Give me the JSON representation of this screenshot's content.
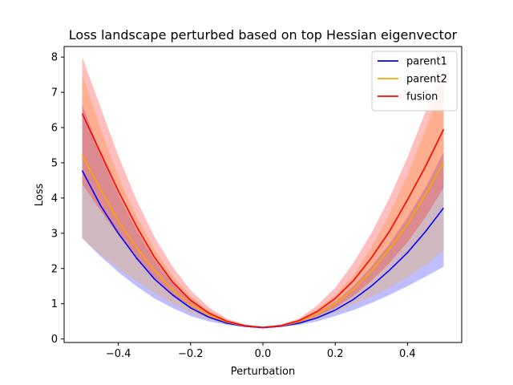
{
  "chart_data": {
    "type": "line",
    "title": "Loss landscape perturbed based on top Hessian eigenvector",
    "xlabel": "Perturbation",
    "ylabel": "Loss",
    "xlim": [
      -0.55,
      0.55
    ],
    "ylim": [
      -0.1,
      8.3
    ],
    "xticks": [
      -0.4,
      -0.2,
      0.0,
      0.2,
      0.4
    ],
    "xtick_labels": [
      "−0.4",
      "−0.2",
      "0.0",
      "0.2",
      "0.4"
    ],
    "yticks": [
      0,
      1,
      2,
      3,
      4,
      5,
      6,
      7,
      8
    ],
    "ytick_labels": [
      "0",
      "1",
      "2",
      "3",
      "4",
      "5",
      "6",
      "7",
      "8"
    ],
    "grid": false,
    "legend_position": "top-right",
    "x": [
      -0.5,
      -0.45,
      -0.4,
      -0.35,
      -0.3,
      -0.25,
      -0.2,
      -0.15,
      -0.1,
      -0.05,
      0.0,
      0.05,
      0.1,
      0.15,
      0.2,
      0.25,
      0.3,
      0.35,
      0.4,
      0.45,
      0.5
    ],
    "series": [
      {
        "name": "parent1",
        "color": "#0000ff",
        "values": [
          4.78,
          3.8,
          3.0,
          2.3,
          1.7,
          1.25,
          0.88,
          0.62,
          0.45,
          0.36,
          0.32,
          0.36,
          0.45,
          0.6,
          0.82,
          1.12,
          1.5,
          1.95,
          2.45,
          3.05,
          3.72
        ],
        "lower": [
          2.86,
          2.35,
          1.9,
          1.5,
          1.15,
          0.88,
          0.65,
          0.5,
          0.4,
          0.34,
          0.31,
          0.34,
          0.4,
          0.5,
          0.65,
          0.82,
          1.02,
          1.25,
          1.5,
          1.77,
          2.05
        ],
        "upper": [
          6.65,
          5.3,
          4.1,
          3.1,
          2.25,
          1.6,
          1.1,
          0.75,
          0.51,
          0.38,
          0.33,
          0.38,
          0.52,
          0.75,
          1.05,
          1.5,
          2.05,
          2.7,
          3.45,
          4.3,
          5.3
        ]
      },
      {
        "name": "parent2",
        "color": "#ffa500",
        "values": [
          5.22,
          4.25,
          3.35,
          2.6,
          1.95,
          1.4,
          0.98,
          0.68,
          0.48,
          0.37,
          0.33,
          0.37,
          0.49,
          0.7,
          1.0,
          1.4,
          1.92,
          2.55,
          3.25,
          4.1,
          5.0
        ],
        "lower": [
          2.86,
          2.4,
          2.0,
          1.65,
          1.3,
          1.0,
          0.74,
          0.56,
          0.43,
          0.35,
          0.32,
          0.35,
          0.43,
          0.56,
          0.75,
          0.98,
          1.2,
          1.45,
          1.75,
          2.1,
          2.5
        ],
        "upper": [
          7.5,
          6.0,
          4.6,
          3.5,
          2.55,
          1.8,
          1.23,
          0.82,
          0.55,
          0.4,
          0.34,
          0.4,
          0.56,
          0.85,
          1.25,
          1.8,
          2.6,
          3.55,
          4.65,
          5.95,
          7.3
        ]
      },
      {
        "name": "fusion",
        "color": "#ff0000",
        "values": [
          6.4,
          5.3,
          4.2,
          3.2,
          2.32,
          1.62,
          1.1,
          0.74,
          0.5,
          0.38,
          0.33,
          0.38,
          0.52,
          0.78,
          1.15,
          1.65,
          2.3,
          3.05,
          3.95,
          4.9,
          5.95
        ],
        "lower": [
          4.4,
          3.65,
          2.95,
          2.3,
          1.72,
          1.22,
          0.86,
          0.6,
          0.45,
          0.36,
          0.32,
          0.36,
          0.47,
          0.64,
          0.88,
          1.22,
          1.65,
          2.15,
          2.75,
          3.45,
          4.3
        ],
        "upper": [
          8.0,
          6.6,
          5.2,
          3.95,
          2.9,
          2.05,
          1.38,
          0.9,
          0.58,
          0.41,
          0.34,
          0.41,
          0.58,
          0.95,
          1.45,
          2.15,
          3.0,
          4.0,
          5.15,
          6.45,
          7.7
        ]
      }
    ]
  }
}
